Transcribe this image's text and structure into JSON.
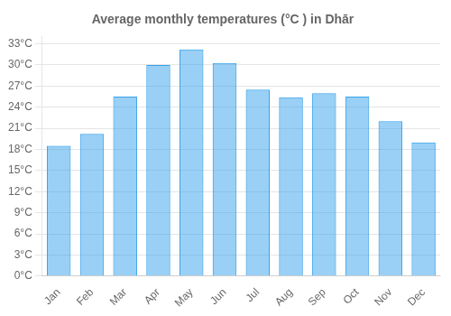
{
  "chart_data": {
    "type": "bar",
    "title": "Average monthly temperatures (°C ) in Dhār",
    "categories": [
      "Jan",
      "Feb",
      "Mar",
      "Apr",
      "May",
      "Jun",
      "Jul",
      "Aug",
      "Sep",
      "Oct",
      "Nov",
      "Dec"
    ],
    "values": [
      18.5,
      20.2,
      25.5,
      30.0,
      32.2,
      30.3,
      26.5,
      25.4,
      26.0,
      25.5,
      22.0,
      19.0
    ],
    "ylim": [
      0,
      34
    ],
    "yticks": [
      {
        "value": 0,
        "label": "0°C"
      },
      {
        "value": 3,
        "label": "3°C"
      },
      {
        "value": 6,
        "label": "6°C"
      },
      {
        "value": 9,
        "label": "9°C"
      },
      {
        "value": 12,
        "label": "12°C"
      },
      {
        "value": 15,
        "label": "15°C"
      },
      {
        "value": 18,
        "label": "18°C"
      },
      {
        "value": 21,
        "label": "21°C"
      },
      {
        "value": 24,
        "label": "24°C"
      },
      {
        "value": 27,
        "label": "27°C"
      },
      {
        "value": 30,
        "label": "30°C"
      },
      {
        "value": 33,
        "label": "33°C"
      }
    ],
    "grid": true
  }
}
